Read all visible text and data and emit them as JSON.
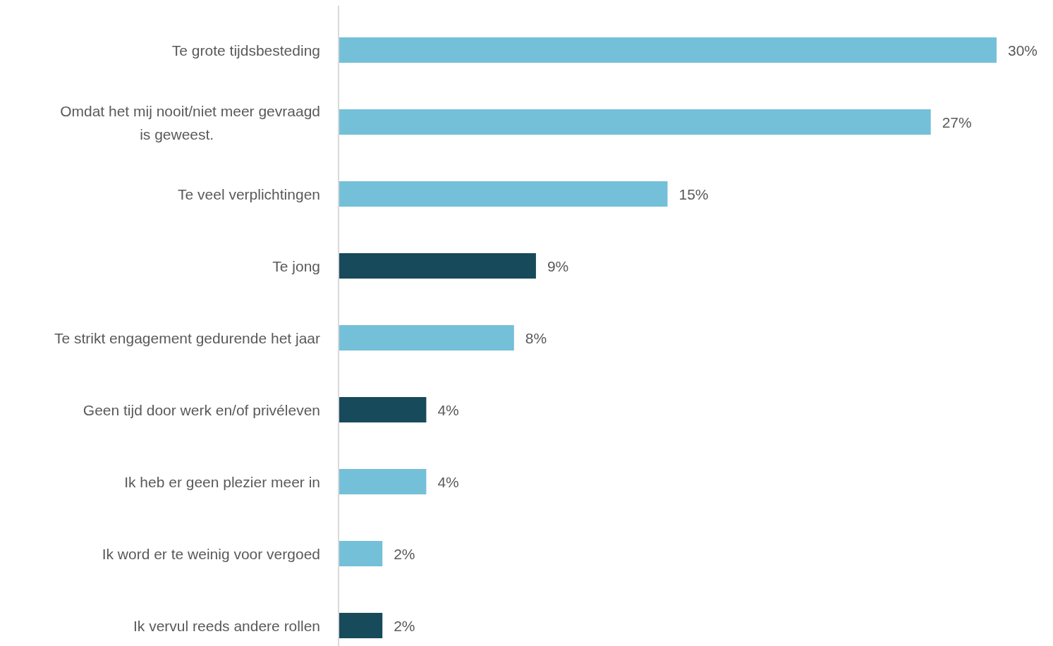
{
  "chart_data": {
    "type": "bar",
    "orientation": "horizontal",
    "categories": [
      "Te grote tijdsbesteding",
      "Omdat het mij nooit/niet meer gevraagd is geweest.",
      "Te veel verplichtingen",
      "Te jong",
      "Te strikt engagement gedurende het jaar",
      "Geen tijd door werk en/of privéleven",
      "Ik heb er geen plezier meer in",
      "Ik word er te weinig voor vergoed",
      "Ik vervul reeds andere rollen"
    ],
    "values": [
      30,
      27,
      15,
      9,
      8,
      4,
      4,
      2,
      2
    ],
    "colors": [
      "#74c0d8",
      "#74c0d8",
      "#74c0d8",
      "#174a5a",
      "#74c0d8",
      "#174a5a",
      "#74c0d8",
      "#74c0d8",
      "#174a5a"
    ],
    "value_labels": [
      "30%",
      "27%",
      "15%",
      "9%",
      "8%",
      "4%",
      "4%",
      "2%",
      "2%"
    ]
  }
}
